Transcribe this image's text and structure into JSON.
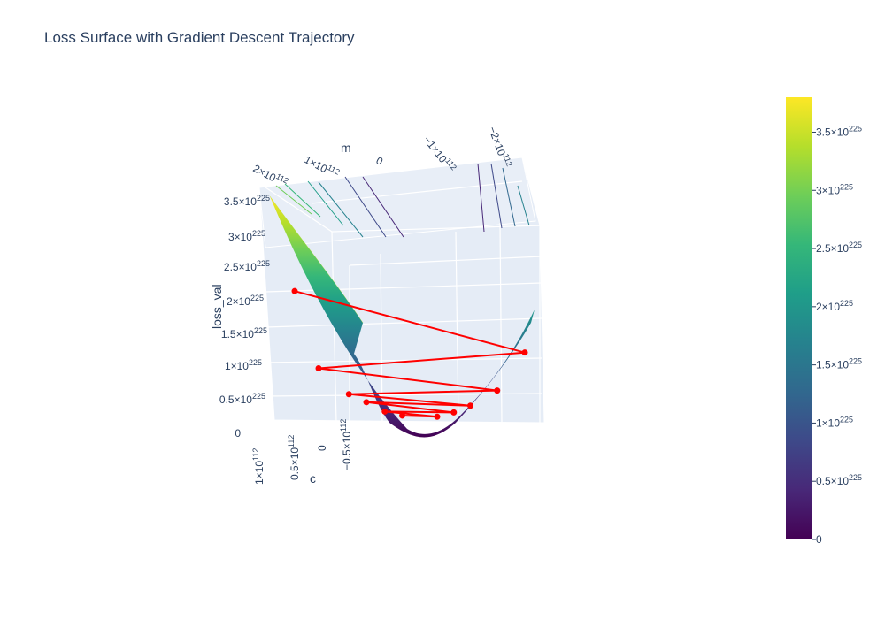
{
  "chart_data": {
    "type": "surface3d",
    "title": "Loss Surface with Gradient Descent Trajectory",
    "axes": {
      "x": {
        "title": "m",
        "ticks": [
          "2×10^112",
          "1×10^112",
          "0",
          "−1×10^112",
          "−2×10^112"
        ]
      },
      "y": {
        "title": "c",
        "ticks": [
          "1×10^112",
          "0.5×10^112",
          "0",
          "−0.5×10^112"
        ]
      },
      "z": {
        "title": "loss_val",
        "ticks": [
          "3.5×10^225",
          "3×10^225",
          "2.5×10^225",
          "2×10^225",
          "1.5×10^225",
          "1×10^225",
          "0.5×10^225",
          "0"
        ]
      }
    },
    "colorbar": {
      "colorscale": "Viridis",
      "range": [
        0,
        3.8e+225
      ],
      "ticks": [
        {
          "label": "3.5×10^225",
          "value": 3.5e+225
        },
        {
          "label": "3×10^225",
          "value": 3e+225
        },
        {
          "label": "2.5×10^225",
          "value": 2.5e+225
        },
        {
          "label": "2×10^225",
          "value": 2e+225
        },
        {
          "label": "1.5×10^225",
          "value": 1.5e+225
        },
        {
          "label": "1×10^225",
          "value": 1e+225
        },
        {
          "label": "0.5×10^225",
          "value": 5e+224
        },
        {
          "label": "0",
          "value": 0
        }
      ]
    },
    "trajectory": {
      "color": "#ff0000",
      "points": [
        {
          "m": 2e+112,
          "c": 6e+111,
          "loss": 1.55e+225
        },
        {
          "m": -2e+112,
          "c": 1e+111,
          "loss": 9.5e+224
        },
        {
          "m": 1.6e+112,
          "c": 5e+111,
          "loss": 6e+224
        },
        {
          "m": -1.5e+112,
          "c": 1e+111,
          "loss": 4.5e+224
        },
        {
          "m": 1.1e+112,
          "c": 3.5e+111,
          "loss": 3e+224
        },
        {
          "m": -1e+112,
          "c": 5e+110,
          "loss": 2.5e+224
        },
        {
          "m": 8e+111,
          "c": 3e+111,
          "loss": 2e+224
        },
        {
          "m": -7e+111,
          "c": 5e+110,
          "loss": 1.5e+224
        },
        {
          "m": 5e+111,
          "c": 2e+111,
          "loss": 1e+224
        },
        {
          "m": -4e+111,
          "c": 5e+110,
          "loss": 8e+223
        },
        {
          "m": 2e+111,
          "c": 1.5e+111,
          "loss": 5e+223
        }
      ]
    }
  },
  "colors": {
    "pane": "#e5ecf6",
    "grid": "#ffffff",
    "text": "#2a3f5f",
    "viridis": [
      "#440154",
      "#482878",
      "#3e4989",
      "#31688e",
      "#26828e",
      "#1f9e89",
      "#35b779",
      "#6ece58",
      "#b5de2b",
      "#fde725"
    ]
  }
}
